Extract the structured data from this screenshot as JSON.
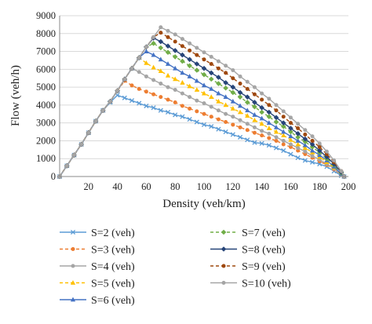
{
  "chart_data": {
    "type": "line",
    "xlabel": "Density (veh/km)",
    "ylabel": "Flow (veh/h)",
    "xlim": [
      0,
      200
    ],
    "ylim": [
      0,
      9000
    ],
    "x_ticks": [
      20,
      40,
      60,
      80,
      100,
      120,
      140,
      160,
      180,
      200
    ],
    "y_ticks": [
      0,
      1000,
      2000,
      3000,
      4000,
      5000,
      6000,
      7000,
      8000,
      9000
    ],
    "grid": "horizontal",
    "legend_position": "bottom",
    "series": [
      {
        "name": "S=2 (veh)",
        "color": "#5b9bd5",
        "marker": "cross",
        "dash": "solid",
        "x": [
          0,
          5,
          10,
          15,
          20,
          25,
          30,
          35,
          40,
          45,
          50,
          55,
          60,
          65,
          70,
          75,
          80,
          85,
          90,
          95,
          100,
          105,
          110,
          115,
          120,
          125,
          130,
          135,
          140,
          145,
          150,
          155,
          160,
          165,
          170,
          175,
          180,
          185,
          190,
          195,
          197
        ],
        "y": [
          0,
          600,
          1200,
          1800,
          2450,
          3100,
          3700,
          4150,
          4550,
          4400,
          4250,
          4100,
          3950,
          3850,
          3700,
          3600,
          3450,
          3350,
          3200,
          3050,
          2900,
          2800,
          2650,
          2500,
          2350,
          2200,
          2050,
          1900,
          1850,
          1750,
          1600,
          1450,
          1250,
          1050,
          900,
          800,
          700,
          550,
          300,
          50,
          0
        ]
      },
      {
        "name": "S=3 (veh)",
        "color": "#ed7d31",
        "marker": "circle",
        "dash": "dashed",
        "x": [
          0,
          5,
          10,
          15,
          20,
          25,
          30,
          35,
          40,
          45,
          50,
          55,
          60,
          65,
          70,
          75,
          80,
          85,
          90,
          95,
          100,
          105,
          110,
          115,
          120,
          125,
          130,
          135,
          140,
          145,
          150,
          155,
          160,
          165,
          170,
          175,
          180,
          185,
          190,
          195,
          197
        ],
        "y": [
          0,
          600,
          1200,
          1800,
          2450,
          3100,
          3700,
          4200,
          4800,
          5350,
          5100,
          4900,
          4750,
          4600,
          4450,
          4300,
          4150,
          3950,
          3800,
          3650,
          3500,
          3350,
          3200,
          3050,
          2900,
          2750,
          2600,
          2450,
          2300,
          2150,
          2000,
          1800,
          1650,
          1450,
          1250,
          1050,
          850,
          650,
          400,
          100,
          0
        ]
      },
      {
        "name": "S=4 (veh)",
        "color": "#a5a5a5",
        "marker": "circle",
        "dash": "solid",
        "x": [
          0,
          5,
          10,
          15,
          20,
          25,
          30,
          35,
          40,
          45,
          50,
          55,
          60,
          65,
          70,
          75,
          80,
          85,
          90,
          95,
          100,
          105,
          110,
          115,
          120,
          125,
          130,
          135,
          140,
          145,
          150,
          155,
          160,
          165,
          170,
          175,
          180,
          185,
          190,
          195,
          197
        ],
        "y": [
          0,
          600,
          1200,
          1800,
          2450,
          3100,
          3700,
          4200,
          4800,
          5450,
          6050,
          5850,
          5600,
          5400,
          5200,
          5000,
          4850,
          4650,
          4450,
          4250,
          4100,
          3900,
          3700,
          3500,
          3350,
          3150,
          2950,
          2750,
          2550,
          2400,
          2200,
          2000,
          1800,
          1600,
          1400,
          1150,
          950,
          700,
          450,
          100,
          0
        ]
      },
      {
        "name": "S=5 (veh)",
        "color": "#ffc000",
        "marker": "triangle",
        "dash": "dashed",
        "x": [
          0,
          5,
          10,
          15,
          20,
          25,
          30,
          35,
          40,
          45,
          50,
          55,
          60,
          65,
          70,
          75,
          80,
          85,
          90,
          95,
          100,
          105,
          110,
          115,
          120,
          125,
          130,
          135,
          140,
          145,
          150,
          155,
          160,
          165,
          170,
          175,
          180,
          185,
          190,
          195,
          197
        ],
        "y": [
          0,
          600,
          1200,
          1800,
          2450,
          3100,
          3700,
          4200,
          4800,
          5450,
          6050,
          6650,
          6350,
          6100,
          5900,
          5650,
          5450,
          5250,
          5050,
          4850,
          4650,
          4450,
          4200,
          4000,
          3800,
          3600,
          3400,
          3150,
          2950,
          2700,
          2500,
          2300,
          2050,
          1800,
          1600,
          1350,
          1100,
          800,
          500,
          150,
          0
        ]
      },
      {
        "name": "S=6 (veh)",
        "color": "#4472c4",
        "marker": "triangle",
        "dash": "solid",
        "x": [
          0,
          5,
          10,
          15,
          20,
          25,
          30,
          35,
          40,
          45,
          50,
          55,
          60,
          65,
          70,
          75,
          80,
          85,
          90,
          95,
          100,
          105,
          110,
          115,
          120,
          125,
          130,
          135,
          140,
          145,
          150,
          155,
          160,
          165,
          170,
          175,
          180,
          185,
          190,
          195,
          197
        ],
        "y": [
          0,
          600,
          1200,
          1800,
          2450,
          3100,
          3700,
          4200,
          4800,
          5450,
          6050,
          6650,
          7000,
          6800,
          6550,
          6300,
          6050,
          5800,
          5600,
          5350,
          5100,
          4900,
          4650,
          4450,
          4200,
          3950,
          3700,
          3450,
          3250,
          3000,
          2750,
          2500,
          2250,
          2000,
          1750,
          1450,
          1200,
          900,
          550,
          150,
          0
        ]
      },
      {
        "name": "S=7 (veh)",
        "color": "#70ad47",
        "marker": "diamond",
        "dash": "dashed",
        "x": [
          0,
          5,
          10,
          15,
          20,
          25,
          30,
          35,
          40,
          45,
          50,
          55,
          60,
          65,
          70,
          75,
          80,
          85,
          90,
          95,
          100,
          105,
          110,
          115,
          120,
          125,
          130,
          135,
          140,
          145,
          150,
          155,
          160,
          165,
          170,
          175,
          180,
          185,
          190,
          195,
          197
        ],
        "y": [
          0,
          600,
          1200,
          1800,
          2450,
          3100,
          3700,
          4200,
          4800,
          5450,
          6050,
          6650,
          7250,
          7450,
          7200,
          6950,
          6700,
          6450,
          6200,
          5950,
          5700,
          5450,
          5200,
          4950,
          4700,
          4450,
          4150,
          3900,
          3600,
          3350,
          3050,
          2800,
          2500,
          2200,
          1950,
          1650,
          1350,
          1000,
          650,
          200,
          0
        ]
      },
      {
        "name": "S=8 (veh)",
        "color": "#264478",
        "marker": "diamond",
        "dash": "solid",
        "x": [
          0,
          5,
          10,
          15,
          20,
          25,
          30,
          35,
          40,
          45,
          50,
          55,
          60,
          65,
          70,
          75,
          80,
          85,
          90,
          95,
          100,
          105,
          110,
          115,
          120,
          125,
          130,
          135,
          140,
          145,
          150,
          155,
          160,
          165,
          170,
          175,
          180,
          185,
          190,
          195,
          197
        ],
        "y": [
          0,
          600,
          1200,
          1800,
          2450,
          3100,
          3700,
          4200,
          4800,
          5450,
          6050,
          6650,
          7250,
          7750,
          7550,
          7300,
          7050,
          6800,
          6550,
          6300,
          6050,
          5800,
          5550,
          5250,
          5000,
          4700,
          4450,
          4150,
          3850,
          3600,
          3300,
          3000,
          2700,
          2400,
          2100,
          1800,
          1450,
          1100,
          700,
          250,
          0
        ]
      },
      {
        "name": "S=9 (veh)",
        "color": "#9e480e",
        "marker": "circle",
        "dash": "dashed",
        "x": [
          0,
          5,
          10,
          15,
          20,
          25,
          30,
          35,
          40,
          45,
          50,
          55,
          60,
          65,
          70,
          75,
          80,
          85,
          90,
          95,
          100,
          105,
          110,
          115,
          120,
          125,
          130,
          135,
          140,
          145,
          150,
          155,
          160,
          165,
          170,
          175,
          180,
          185,
          190,
          195,
          197
        ],
        "y": [
          0,
          600,
          1200,
          1800,
          2450,
          3100,
          3700,
          4200,
          4800,
          5450,
          6050,
          6650,
          7250,
          7800,
          8050,
          7800,
          7550,
          7300,
          7050,
          6800,
          6550,
          6300,
          6050,
          5800,
          5500,
          5200,
          4900,
          4600,
          4300,
          4000,
          3700,
          3350,
          3000,
          2700,
          2350,
          2000,
          1650,
          1250,
          800,
          300,
          0
        ]
      },
      {
        "name": "S=10 (veh)",
        "color": "#a5a5a5",
        "marker": "circle",
        "dash": "solid",
        "x": [
          0,
          5,
          10,
          15,
          20,
          25,
          30,
          35,
          40,
          45,
          50,
          55,
          60,
          65,
          70,
          75,
          80,
          85,
          90,
          95,
          100,
          105,
          110,
          115,
          120,
          125,
          130,
          135,
          140,
          145,
          150,
          155,
          160,
          165,
          170,
          175,
          180,
          185,
          190,
          195,
          197
        ],
        "y": [
          0,
          600,
          1200,
          1800,
          2450,
          3100,
          3700,
          4200,
          4800,
          5450,
          6050,
          6650,
          7250,
          7800,
          8350,
          8150,
          7950,
          7700,
          7450,
          7200,
          6950,
          6700,
          6450,
          6200,
          5950,
          5600,
          5300,
          5000,
          4650,
          4350,
          4000,
          3650,
          3300,
          2950,
          2600,
          2250,
          1850,
          1400,
          900,
          300,
          0
        ]
      }
    ]
  }
}
